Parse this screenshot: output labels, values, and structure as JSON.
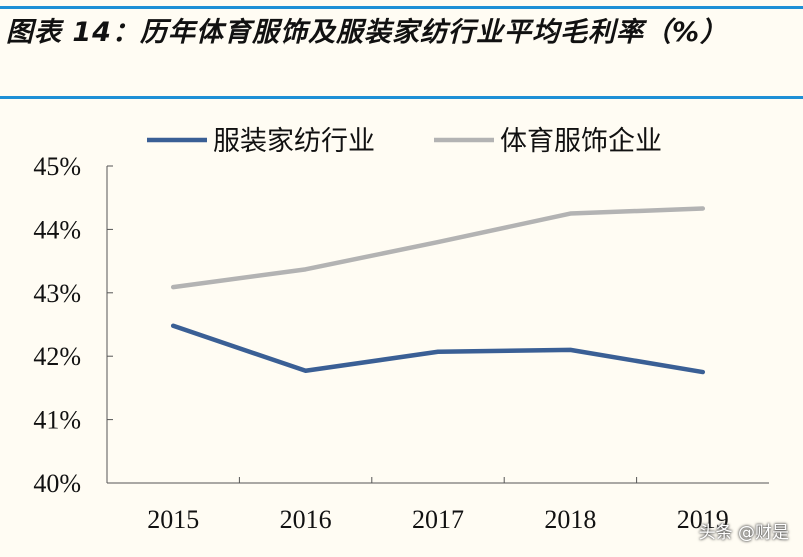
{
  "title": "图表 14：历年体育服饰及服装家纺行业平均毛利率（%）",
  "watermark": "头条 @财是",
  "chart_data": {
    "type": "line",
    "title": "图表 14：历年体育服饰及服装家纺行业平均毛利率（%）",
    "categories": [
      "2015",
      "2016",
      "2017",
      "2018",
      "2019"
    ],
    "series": [
      {
        "name": "服装家纺行业",
        "color": "#3a5f95",
        "values": [
          42.48,
          41.77,
          42.07,
          42.1,
          41.75
        ]
      },
      {
        "name": "体育服饰企业",
        "color": "#b3b3b3",
        "values": [
          43.09,
          43.37,
          43.8,
          44.25,
          44.33
        ]
      }
    ],
    "ylim": [
      40,
      45
    ],
    "yticks": [
      "40%",
      "41%",
      "42%",
      "43%",
      "44%",
      "45%"
    ],
    "legend": "top",
    "grid": false,
    "xlabel": "",
    "ylabel": ""
  },
  "colors": {
    "rule": "#1e90d6",
    "background": "#fffcf3"
  }
}
